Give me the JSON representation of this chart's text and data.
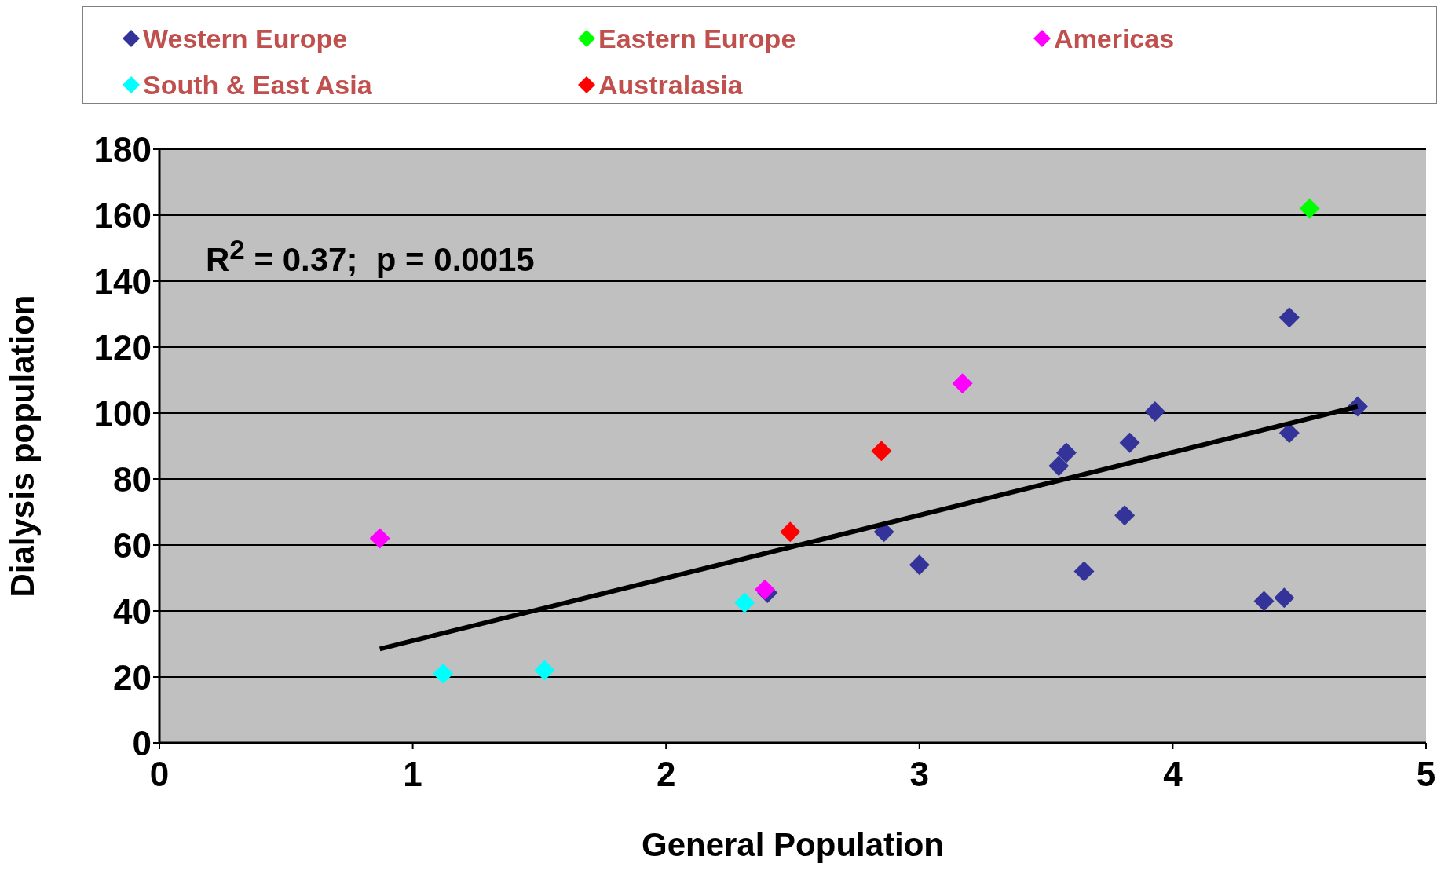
{
  "chart_data": {
    "type": "scatter",
    "xlabel": "General Population",
    "ylabel": "Dialysis population",
    "xlim": [
      0,
      5
    ],
    "xticks": [
      0,
      1,
      2,
      3,
      4,
      5
    ],
    "ylim": [
      0,
      180
    ],
    "yticks": [
      0,
      20,
      40,
      60,
      80,
      100,
      120,
      140,
      160,
      180
    ],
    "grid": "y",
    "legend": "top",
    "marker": "diamond",
    "annotations": [
      "R$^{2}$ = 0.37;  p = 0.0015"
    ],
    "series": [
      {
        "name": "Western Europe",
        "color": "#333399",
        "x": [
          2.4,
          2.86,
          3.0,
          3.55,
          3.58,
          3.65,
          3.81,
          3.83,
          3.93,
          4.36,
          4.44,
          4.46,
          4.46,
          4.73
        ],
        "values": [
          45.5,
          64,
          54,
          84,
          88,
          52,
          69,
          91,
          100.5,
          43,
          44,
          94,
          129,
          102
        ]
      },
      {
        "name": "Eastern Europe",
        "color": "#00ff00",
        "x": [
          4.54
        ],
        "values": [
          162
        ]
      },
      {
        "name": "Americas",
        "color": "#ff00ff",
        "x": [
          0.87,
          2.39,
          3.17
        ],
        "values": [
          62,
          46.5,
          109
        ]
      },
      {
        "name": "South & East Asia",
        "color": "#00ffff",
        "x": [
          1.12,
          1.52,
          2.31
        ],
        "values": [
          21,
          22,
          42.5
        ]
      },
      {
        "name": "Australasia",
        "color": "#ff0000",
        "x": [
          2.49,
          2.85
        ],
        "values": [
          64,
          88.5
        ]
      },
      {
        "type": "line",
        "marker": "none",
        "color": "#000000",
        "x": [
          0.87,
          4.73
        ],
        "values": [
          28.5,
          102
        ]
      }
    ]
  }
}
